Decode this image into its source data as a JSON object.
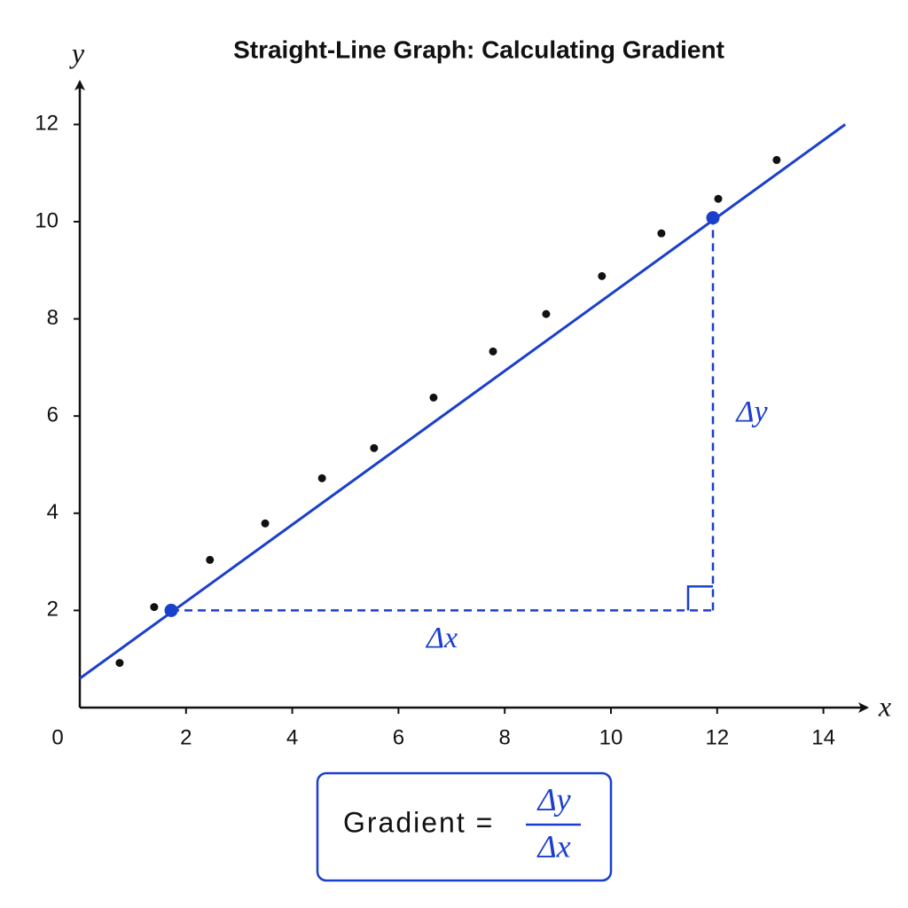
{
  "chart_data": {
    "type": "scatter",
    "title": "Straight-Line Graph: Calculating Gradient",
    "x_label": "x",
    "y_label": "y",
    "xlim": [
      0,
      14.66
    ],
    "ylim": [
      0,
      12.82
    ],
    "xticks": [
      0,
      2,
      4,
      6,
      8,
      10,
      12,
      14
    ],
    "yticks": [
      2,
      4,
      6,
      8,
      10,
      12
    ],
    "x": [
      0.75,
      1.4,
      2.45,
      3.49,
      4.56,
      5.54,
      6.66,
      7.78,
      8.78,
      9.83,
      10.95,
      12.02,
      13.12
    ],
    "values": [
      0.92,
      2.07,
      3.04,
      3.79,
      4.72,
      5.34,
      6.38,
      7.33,
      8.1,
      8.88,
      9.76,
      10.47,
      11.27
    ],
    "color": "#111111",
    "fit_line": {
      "x": [
        0,
        14.41
      ],
      "y": [
        0.6,
        12.0
      ],
      "color": "#1a3fcc"
    },
    "points": {
      "x": [
        1.72,
        11.92
      ],
      "y": [
        2.0,
        10.08
      ],
      "color": "#1a3fcc"
    },
    "delta_x_label": "Δx",
    "delta_y_label": "Δy",
    "formula": {
      "label": "Gradient =",
      "numerator": "Δy",
      "denominator": "Δx"
    }
  }
}
